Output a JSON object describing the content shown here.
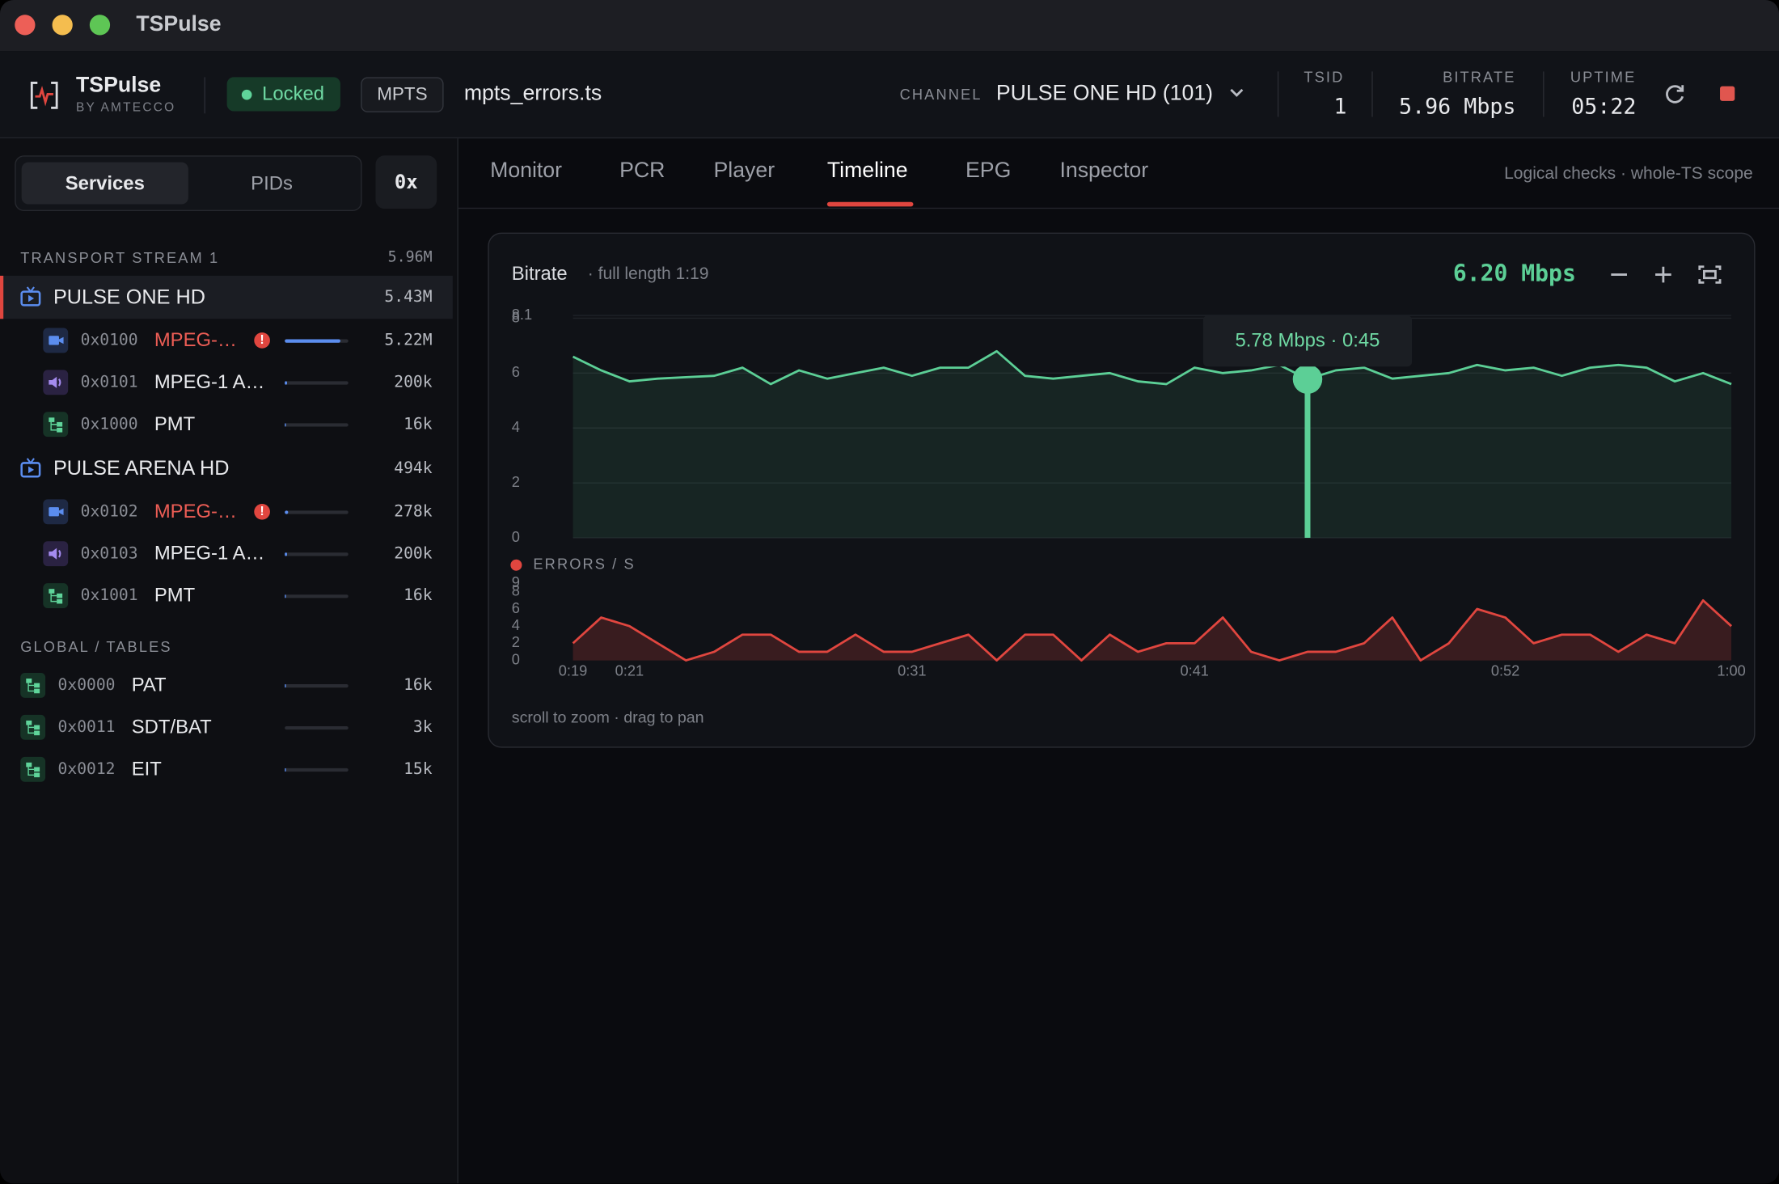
{
  "window": {
    "title": "TSPulse"
  },
  "header": {
    "app": "TSPulse",
    "by": "BY AMTECCO",
    "status": "Locked",
    "mode": "MPTS",
    "file": "mpts_errors.ts",
    "channel_label": "CHANNEL",
    "channel": "PULSE ONE HD (101)",
    "tsid_label": "TSID",
    "tsid": "1",
    "bitrate_label": "BITRATE",
    "bitrate": "5.96 Mbps",
    "uptime_label": "UPTIME",
    "uptime": "05:22"
  },
  "sidebar": {
    "tabs": [
      "Services",
      "PIDs"
    ],
    "hex": "0x",
    "stream": {
      "name": "TRANSPORT STREAM 1",
      "rate": {
        "value": 5960000,
        "label": "5.96M"
      }
    },
    "services": [
      {
        "name": "PULSE ONE HD",
        "rate": {
          "value": 5430000,
          "label": "5.43M"
        },
        "pids": [
          {
            "pid": "0x0100",
            "name": "MPEG-…",
            "rate": {
              "value": 5220000,
              "label": "5.22M"
            }
          },
          {
            "pid": "0x0101",
            "name": "MPEG-1 A…",
            "rate": {
              "value": 200000,
              "label": "200k"
            }
          },
          {
            "pid": "0x1000",
            "name": "PMT",
            "rate": {
              "value": 16000,
              "label": "16k"
            }
          }
        ]
      },
      {
        "name": "PULSE ARENA HD",
        "rate": {
          "value": 494000,
          "label": "494k"
        },
        "pids": [
          {
            "pid": "0x0102",
            "name": "MPEG-…",
            "rate": {
              "value": 278000,
              "label": "278k"
            }
          },
          {
            "pid": "0x0103",
            "name": "MPEG-1 A…",
            "rate": {
              "value": 200000,
              "label": "200k"
            }
          },
          {
            "pid": "0x1001",
            "name": "PMT",
            "rate": {
              "value": 16000,
              "label": "16k"
            }
          }
        ]
      }
    ],
    "global": {
      "title": "GLOBAL / TABLES",
      "pids": [
        {
          "pid": "0x0000",
          "name": "PAT",
          "rate": {
            "value": 16000,
            "label": "16k"
          }
        },
        {
          "pid": "0x0011",
          "name": "SDT/BAT",
          "rate": {
            "value": 3000,
            "label": "3k"
          }
        },
        {
          "pid": "0x0012",
          "name": "EIT",
          "rate": {
            "value": 15000,
            "label": "15k"
          }
        }
      ]
    }
  },
  "tabs": [
    "Monitor",
    "PCR",
    "Player",
    "Timeline",
    "EPG",
    "Inspector"
  ],
  "scope": "Logical checks · whole-TS scope",
  "timeline": {
    "readout": "6.20 Mbps",
    "tooltip": "5.78 Mbps · 0:45",
    "hint": "scroll to zoom · drag to pan"
  },
  "chart_data": [
    {
      "type": "area",
      "title": "Bitrate",
      "subtitle": "· full length 1:19",
      "color": "#5ccf96",
      "grid": true,
      "cursor": 45,
      "x": [
        19,
        20,
        21,
        22,
        23,
        24,
        25,
        26,
        27,
        28,
        29,
        30,
        31,
        32,
        33,
        34,
        35,
        36,
        37,
        38,
        39,
        40,
        41,
        42,
        43,
        44,
        45,
        46,
        47,
        48,
        49,
        50,
        51,
        52,
        53,
        54,
        55,
        56,
        57,
        58,
        59,
        60
      ],
      "values": [
        6.6,
        6.1,
        5.7,
        5.8,
        5.85,
        5.9,
        6.2,
        5.6,
        6.1,
        5.8,
        6.0,
        6.2,
        5.9,
        6.2,
        6.2,
        6.8,
        5.9,
        5.8,
        5.9,
        6.0,
        5.7,
        5.6,
        6.2,
        6.0,
        6.1,
        6.3,
        5.78,
        6.1,
        6.2,
        5.8,
        5.9,
        6.0,
        6.3,
        6.1,
        6.2,
        5.9,
        6.2,
        6.3,
        6.2,
        5.7,
        6.0,
        5.6
      ],
      "xlim": [
        19,
        60
      ],
      "ylim": [
        0,
        8.1
      ],
      "yticks": [
        0,
        2,
        4,
        6,
        8,
        8.1
      ]
    },
    {
      "type": "area",
      "title": "ERRORS / S",
      "color": "#e0463f",
      "grid": false,
      "x": [
        19,
        20,
        21,
        22,
        23,
        24,
        25,
        26,
        27,
        28,
        29,
        30,
        31,
        32,
        33,
        34,
        35,
        36,
        37,
        38,
        39,
        40,
        41,
        42,
        43,
        44,
        45,
        46,
        47,
        48,
        49,
        50,
        51,
        52,
        53,
        54,
        55,
        56,
        57,
        58,
        59,
        60
      ],
      "values": [
        2,
        5,
        4,
        2,
        0,
        1,
        3,
        3,
        1,
        1,
        3,
        1,
        1,
        2,
        3,
        0,
        3,
        3,
        0,
        3,
        1,
        2,
        2,
        5,
        1,
        0,
        1,
        1,
        2,
        5,
        0,
        2,
        6,
        5,
        2,
        3,
        3,
        1,
        3,
        2,
        7,
        4
      ],
      "xlim": [
        19,
        60
      ],
      "ylim": [
        0,
        9
      ],
      "yticks": [
        0,
        2,
        4,
        6,
        8,
        9
      ],
      "xticks": [
        {
          "value": 19,
          "label": "0:19"
        },
        {
          "value": 21,
          "label": "0:21"
        },
        {
          "value": 31,
          "label": "0:31"
        },
        {
          "value": 41,
          "label": "0:41"
        },
        {
          "value": 52,
          "label": "0:52"
        },
        {
          "value": 60,
          "label": "1:00"
        }
      ]
    }
  ]
}
